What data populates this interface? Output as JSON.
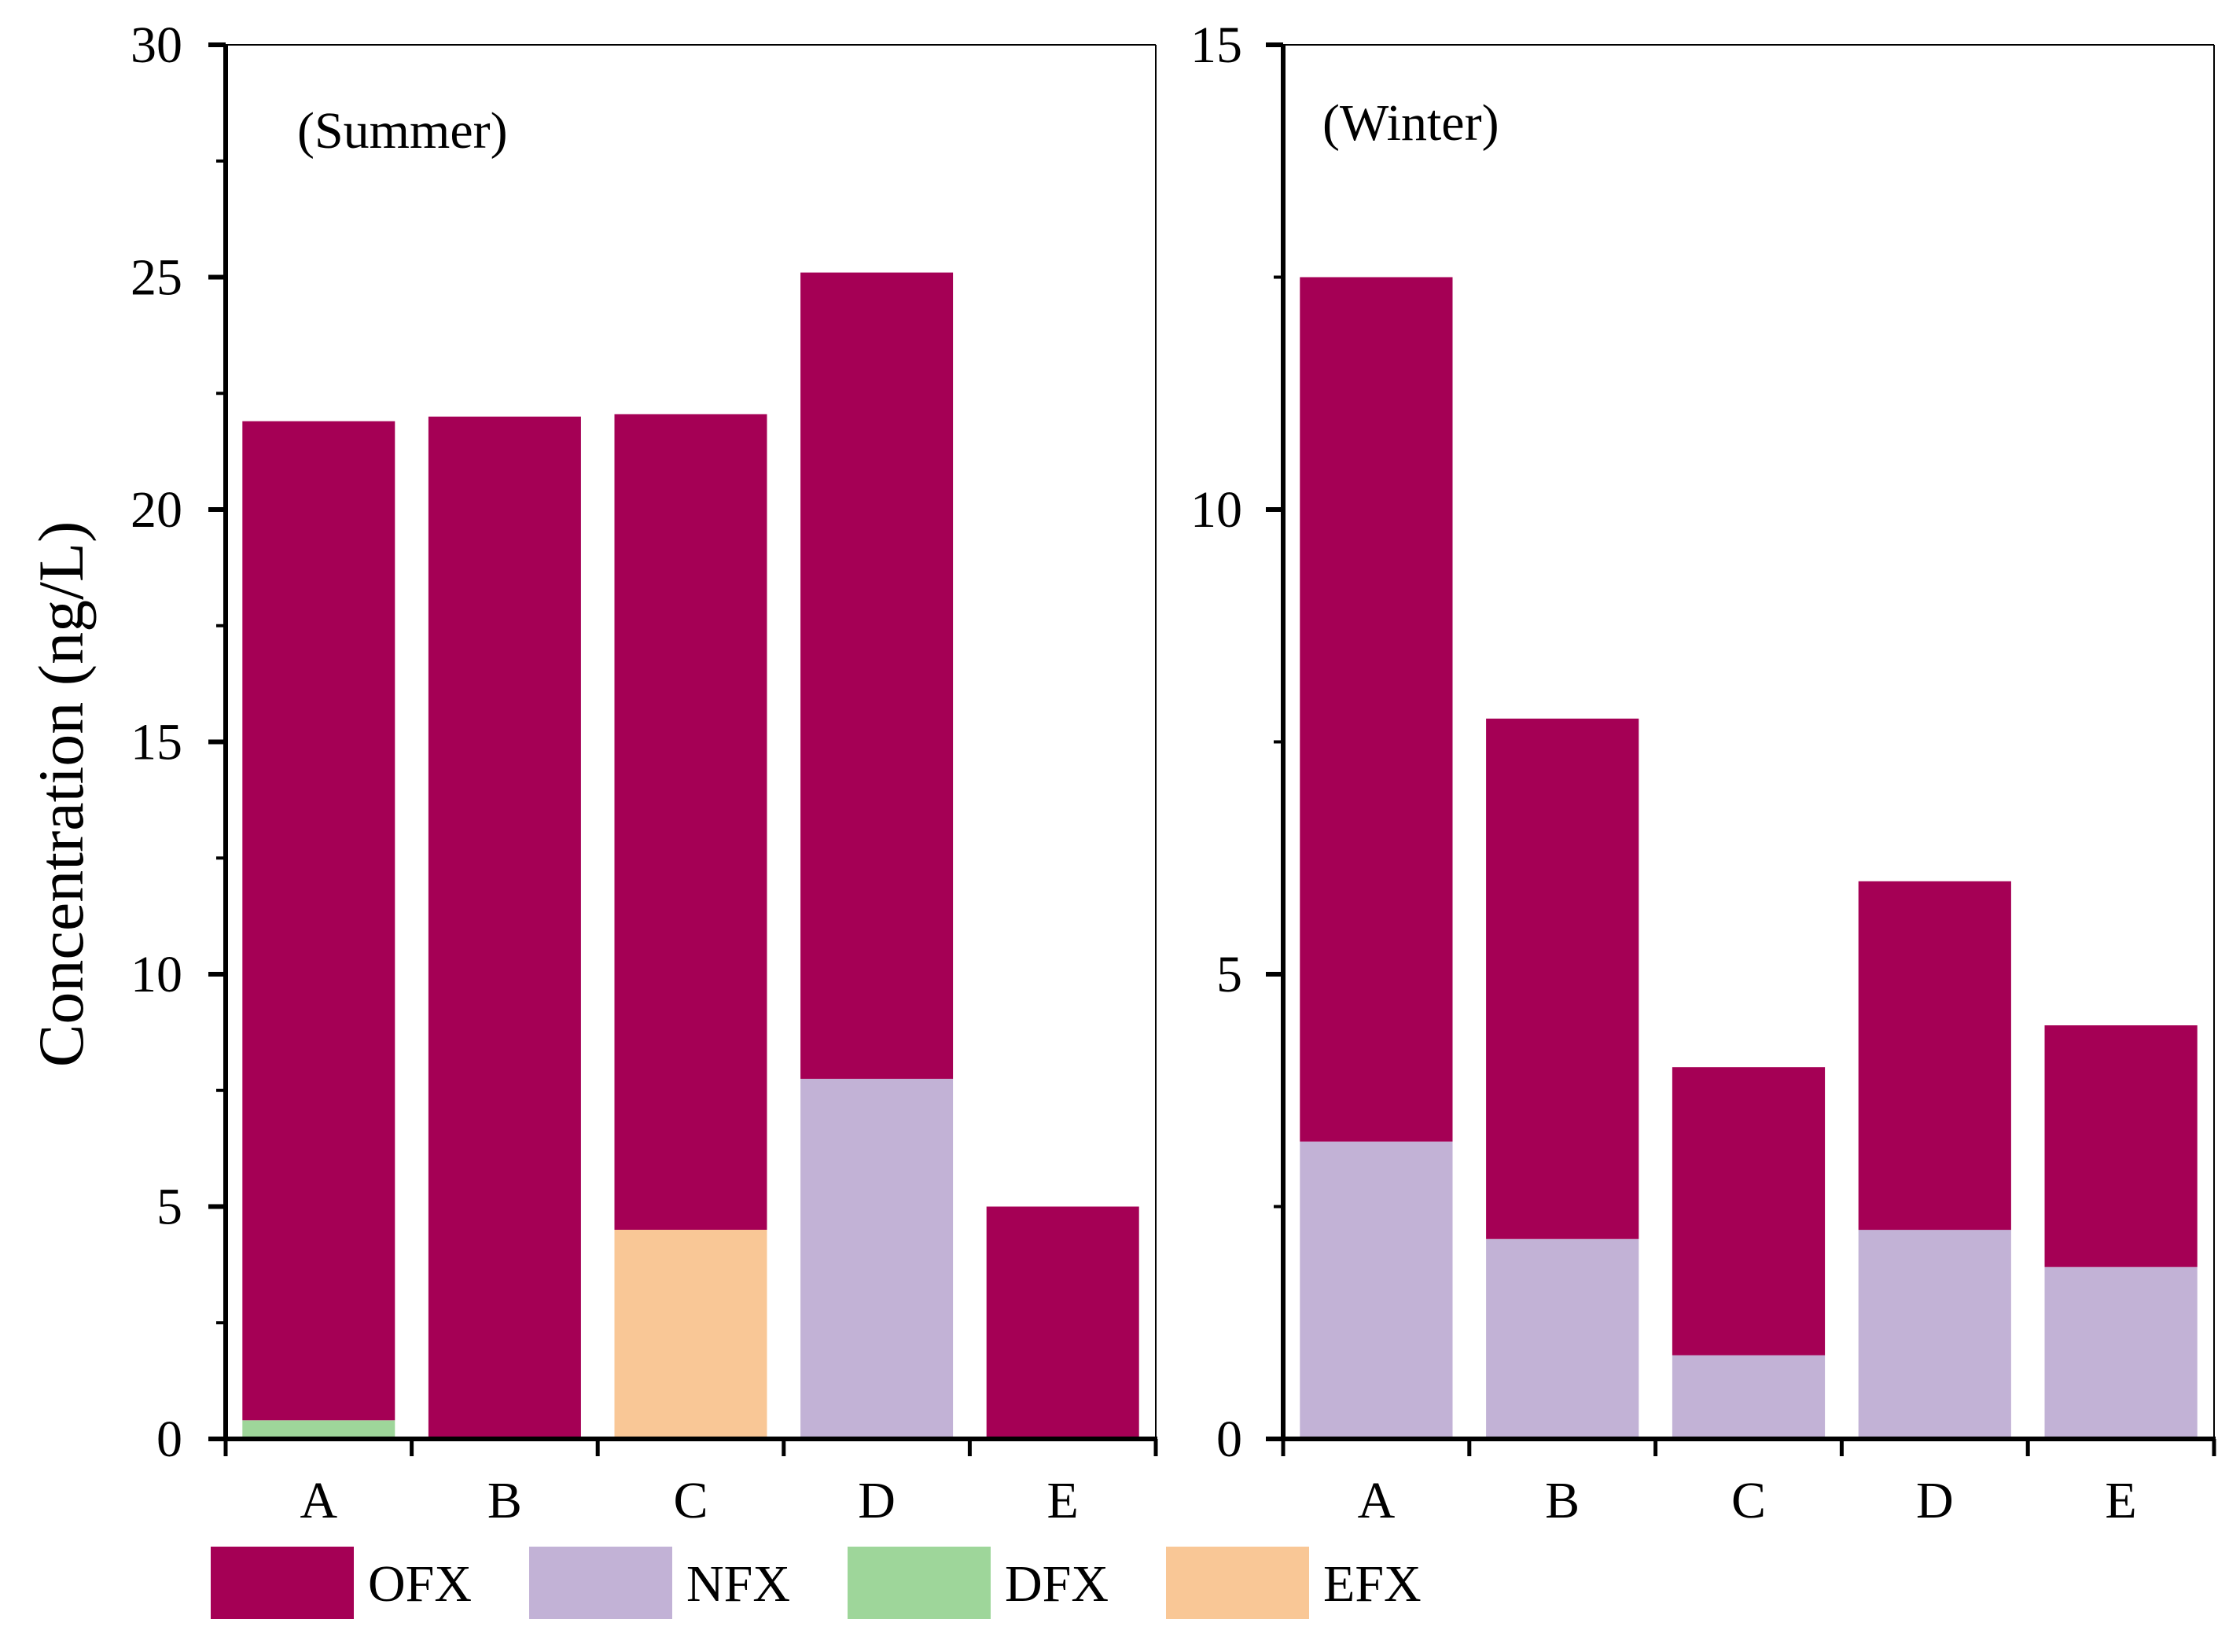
{
  "chart_data": {
    "type": "stacked-bar",
    "ylabel": "Concentration (ng/L)",
    "legend": [
      {
        "name": "OFX",
        "color": "#A50055"
      },
      {
        "name": "NFX",
        "color": "#C2B2D6"
      },
      {
        "name": "DFX",
        "color": "#9ED69A"
      },
      {
        "name": "EFX",
        "color": "#F9C796"
      }
    ],
    "panels": [
      {
        "id": "summer",
        "title": "(Summer)",
        "categories": [
          "A",
          "B",
          "C",
          "D",
          "E"
        ],
        "ylim": [
          0,
          30
        ],
        "yticks": [
          0,
          5,
          10,
          15,
          20,
          25,
          30
        ],
        "series": [
          {
            "name": "DFX",
            "values": [
              0.4,
              0,
              0,
              0,
              0
            ]
          },
          {
            "name": "EFX",
            "values": [
              0,
              0,
              4.5,
              0,
              0
            ]
          },
          {
            "name": "NFX",
            "values": [
              0,
              0,
              0,
              7.75,
              0
            ]
          },
          {
            "name": "OFX",
            "values": [
              21.5,
              22.0,
              17.55,
              17.35,
              5.0
            ]
          }
        ]
      },
      {
        "id": "winter",
        "title": "(Winter)",
        "categories": [
          "A",
          "B",
          "C",
          "D",
          "E"
        ],
        "ylim": [
          0,
          15
        ],
        "yticks": [
          0,
          5,
          10,
          15
        ],
        "series": [
          {
            "name": "NFX",
            "values": [
              3.2,
              2.15,
              0.9,
              2.25,
              1.85
            ]
          },
          {
            "name": "OFX",
            "values": [
              9.3,
              5.6,
              3.1,
              3.75,
              2.6
            ]
          }
        ]
      }
    ]
  }
}
